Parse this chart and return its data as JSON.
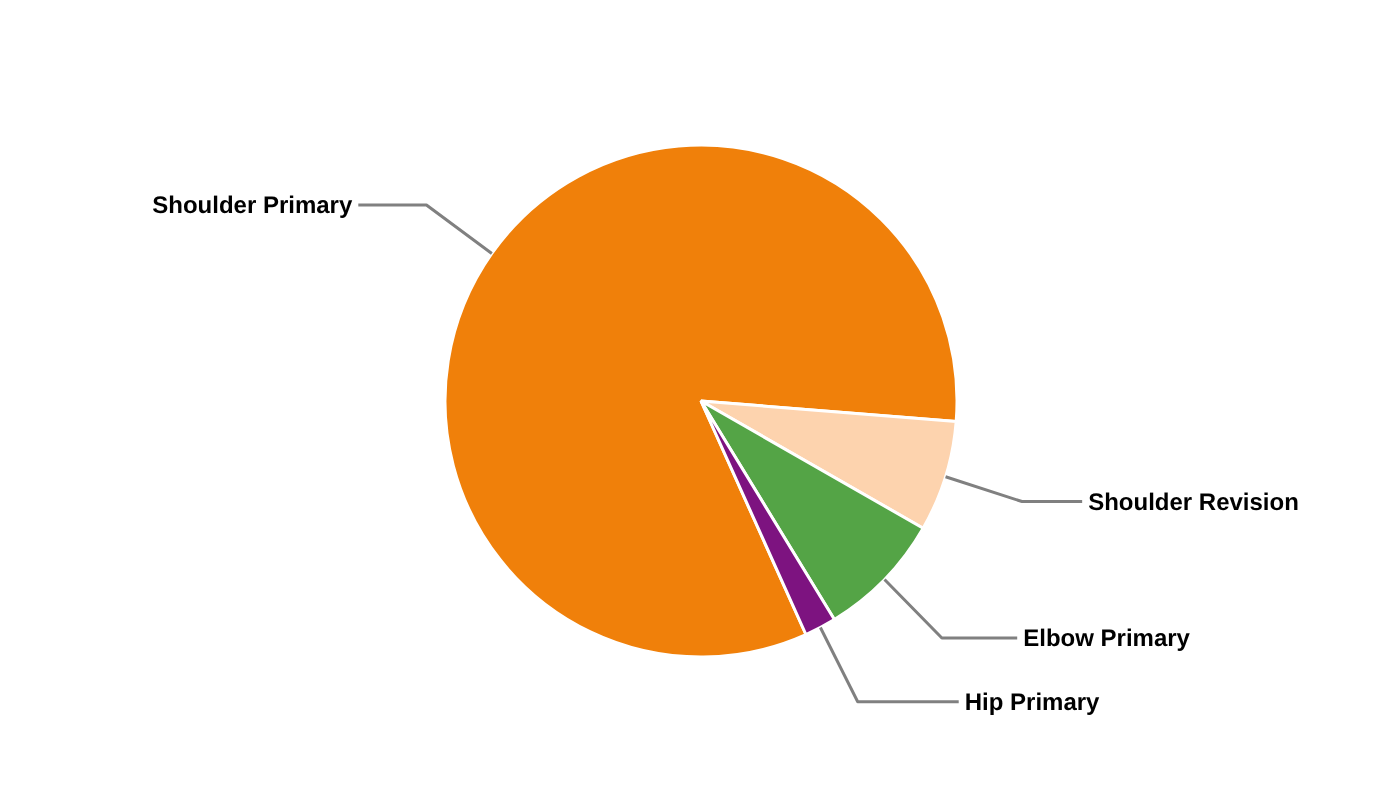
{
  "chart_data": {
    "type": "pie",
    "categories": [
      "Shoulder Primary",
      "Shoulder Revision",
      "Elbow Primary",
      "Hip Primary"
    ],
    "values": [
      83,
      7,
      8,
      2
    ],
    "colors": [
      "#f0800a",
      "#fdd3ae",
      "#54a446",
      "#7d1380"
    ]
  }
}
